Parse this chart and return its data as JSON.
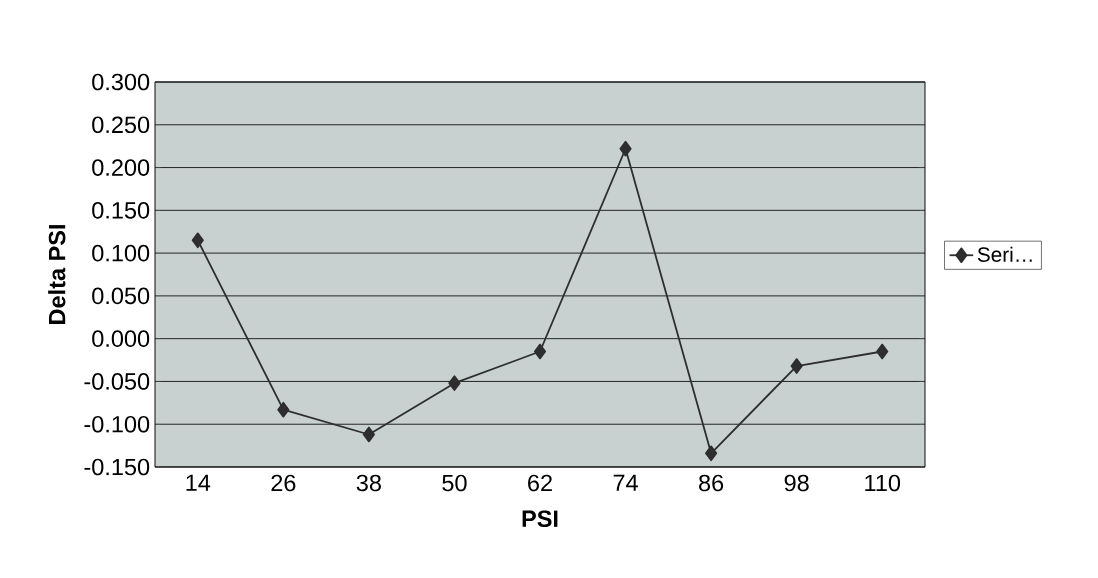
{
  "chart_data": {
    "type": "line",
    "xlabel": "PSI",
    "ylabel": "Delta PSI",
    "categories": [
      "14",
      "26",
      "38",
      "50",
      "62",
      "74",
      "86",
      "98",
      "110"
    ],
    "series": [
      {
        "name": "Seri…",
        "color": "#2e2e2e",
        "values": [
          0.115,
          -0.083,
          -0.112,
          -0.052,
          -0.015,
          0.222,
          -0.134,
          -0.032,
          -0.015
        ]
      }
    ],
    "ylim": [
      -0.15,
      0.3
    ],
    "yticks": [
      {
        "value": -0.15,
        "label": "-0.150"
      },
      {
        "value": -0.1,
        "label": "-0.100"
      },
      {
        "value": -0.05,
        "label": "-0.050"
      },
      {
        "value": 0,
        "label": "0.000"
      },
      {
        "value": 0.05,
        "label": "0.050"
      },
      {
        "value": 0.1,
        "label": "0.100"
      },
      {
        "value": 0.15,
        "label": "0.150"
      },
      {
        "value": 0.2,
        "label": "0.200"
      },
      {
        "value": 0.25,
        "label": "0.250"
      },
      {
        "value": 0.3,
        "label": "0.300"
      }
    ],
    "grid": "y",
    "legend": "right",
    "marker": "diamond",
    "line_style": "solid"
  }
}
